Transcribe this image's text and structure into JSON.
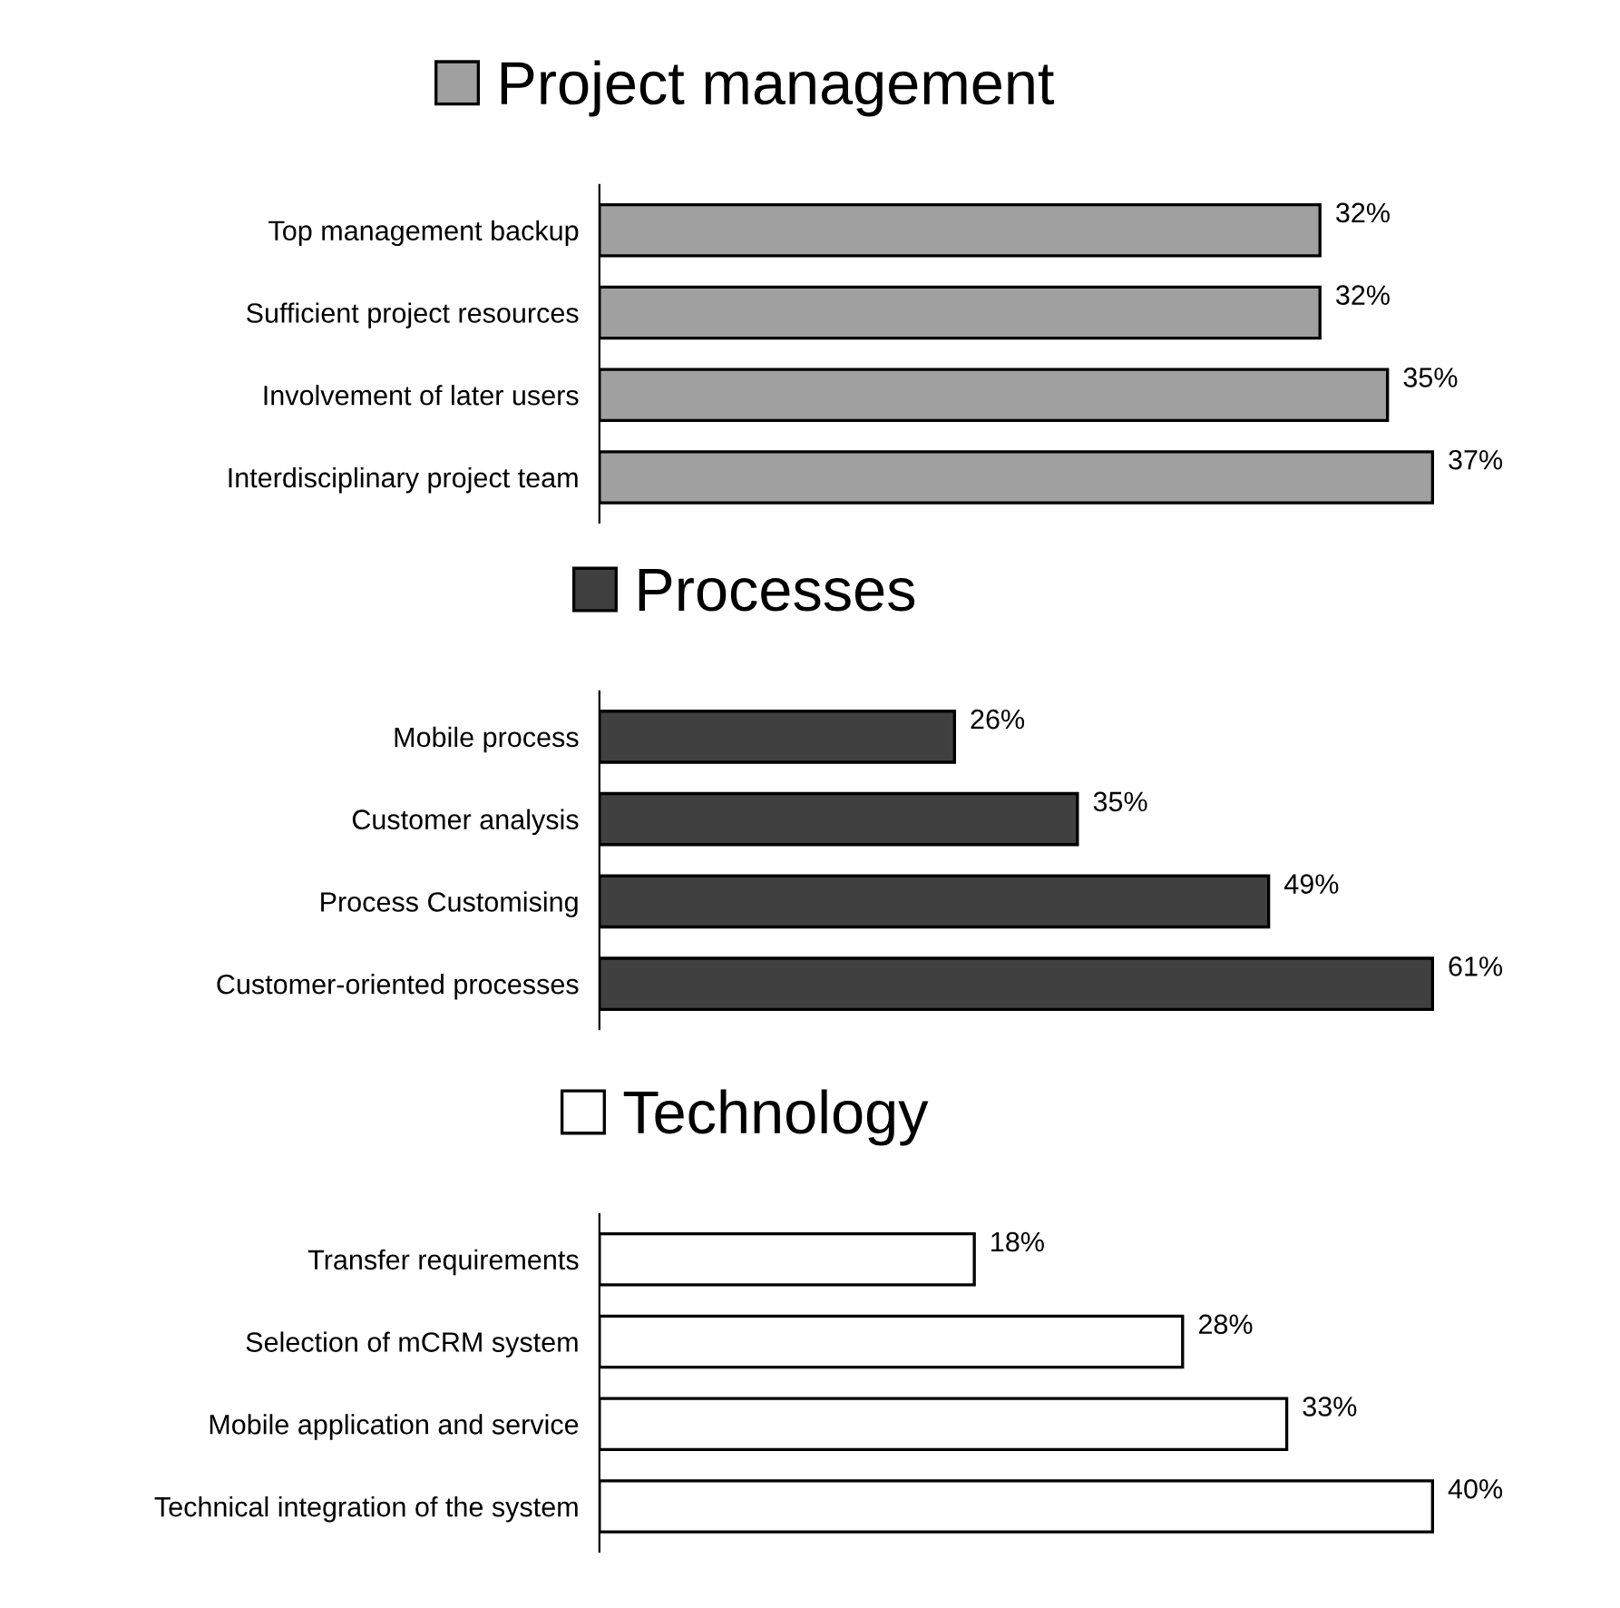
{
  "chart_data": [
    {
      "type": "bar",
      "orientation": "horizontal",
      "categories": [
        "Top management backup",
        "Sufficient project resources",
        "Involvement of later users",
        "Interdisciplinary project team"
      ],
      "tick_labels": "y",
      "grid": false,
      "legend": "top",
      "series": [
        {
          "name": "Project management",
          "color": "#a0a0a0",
          "values": [
            32,
            32,
            35,
            37
          ],
          "value_labels": [
            "32%",
            "32%",
            "35%",
            "37%"
          ]
        }
      ]
    },
    {
      "type": "bar",
      "orientation": "horizontal",
      "categories": [
        "Mobile process",
        "Customer analysis",
        "Process Customising",
        "Customer-oriented processes"
      ],
      "tick_labels": "y",
      "grid": false,
      "legend": "top",
      "series": [
        {
          "name": "Processes",
          "color": "#404040",
          "values": [
            26,
            35,
            49,
            61
          ],
          "value_labels": [
            "26%",
            "35%",
            "49%",
            "61%"
          ]
        }
      ]
    },
    {
      "type": "bar",
      "orientation": "horizontal",
      "categories": [
        "Transfer requirements",
        "Selection of mCRM system",
        "Mobile application and service",
        "Technical integration of the system"
      ],
      "tick_labels": "y",
      "grid": false,
      "legend": "top",
      "series": [
        {
          "name": "Technology",
          "color": "#ffffff",
          "values": [
            18,
            28,
            33,
            40
          ],
          "value_labels": [
            "18%",
            "28%",
            "33%",
            "40%"
          ]
        }
      ]
    }
  ]
}
